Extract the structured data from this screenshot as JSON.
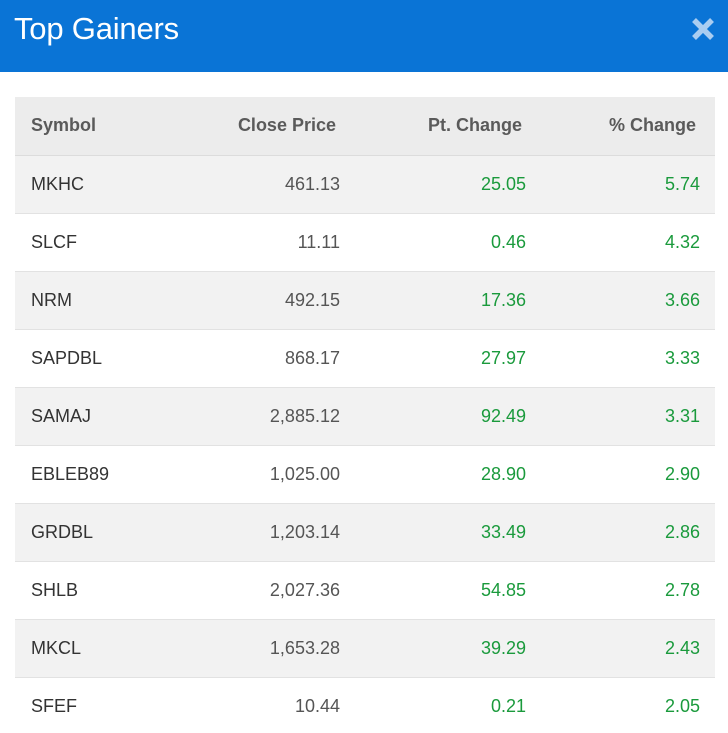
{
  "header": {
    "title": "Top Gainers",
    "close_icon": "close-icon",
    "accent_color": "#0a74d6"
  },
  "table": {
    "columns": [
      "Symbol",
      "Close Price",
      "Pt. Change",
      "% Change"
    ],
    "rows": [
      {
        "symbol": "MKHC",
        "close_price": "461.13",
        "pt_change": "25.05",
        "pct_change": "5.74"
      },
      {
        "symbol": "SLCF",
        "close_price": "11.11",
        "pt_change": "0.46",
        "pct_change": "4.32"
      },
      {
        "symbol": "NRM",
        "close_price": "492.15",
        "pt_change": "17.36",
        "pct_change": "3.66"
      },
      {
        "symbol": "SAPDBL",
        "close_price": "868.17",
        "pt_change": "27.97",
        "pct_change": "3.33"
      },
      {
        "symbol": "SAMAJ",
        "close_price": "2,885.12",
        "pt_change": "92.49",
        "pct_change": "3.31"
      },
      {
        "symbol": "EBLEB89",
        "close_price": "1,025.00",
        "pt_change": "28.90",
        "pct_change": "2.90"
      },
      {
        "symbol": "GRDBL",
        "close_price": "1,203.14",
        "pt_change": "33.49",
        "pct_change": "2.86"
      },
      {
        "symbol": "SHLB",
        "close_price": "2,027.36",
        "pt_change": "54.85",
        "pct_change": "2.78"
      },
      {
        "symbol": "MKCL",
        "close_price": "1,653.28",
        "pt_change": "39.29",
        "pct_change": "2.43"
      },
      {
        "symbol": "SFEF",
        "close_price": "10.44",
        "pt_change": "0.21",
        "pct_change": "2.05"
      }
    ],
    "gain_color": "#1a9a3c"
  }
}
